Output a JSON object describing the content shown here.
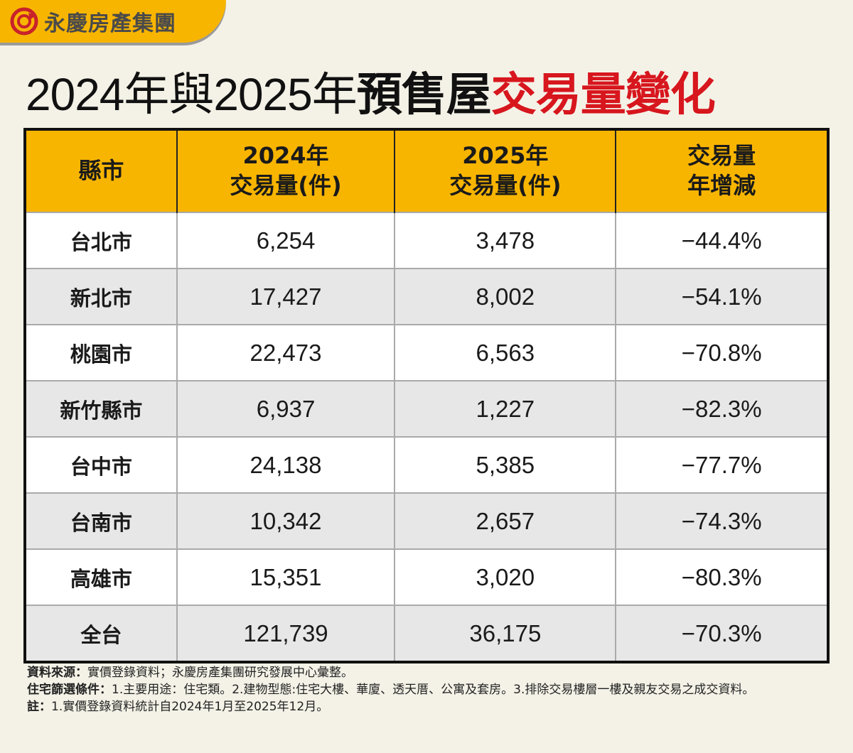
{
  "brand": {
    "name": "永慶房產集團",
    "accent": "#f8b500",
    "logo_color": "#c8222b"
  },
  "title": {
    "part1": "2024年與2025年",
    "part2": "預售屋",
    "part3": "交易量變化",
    "highlight_color": "#d7161e"
  },
  "chart_data": {
    "type": "table",
    "columns": [
      "縣市",
      "2024年 交易量(件)",
      "2025年 交易量(件)",
      "交易量 年增減"
    ],
    "header_lines": [
      [
        "縣市"
      ],
      [
        "2024年",
        "交易量(件)"
      ],
      [
        "2025年",
        "交易量(件)"
      ],
      [
        "交易量",
        "年增減"
      ]
    ],
    "rows": [
      [
        "台北市",
        "6,254",
        "3,478",
        "−44.4%"
      ],
      [
        "新北市",
        "17,427",
        "8,002",
        "−54.1%"
      ],
      [
        "桃園市",
        "22,473",
        "6,563",
        "−70.8%"
      ],
      [
        "新竹縣市",
        "6,937",
        "1,227",
        "−82.3%"
      ],
      [
        "台中市",
        "24,138",
        "5,385",
        "−77.7%"
      ],
      [
        "台南市",
        "10,342",
        "2,657",
        "−74.3%"
      ],
      [
        "高雄市",
        "15,351",
        "3,020",
        "−80.3%"
      ],
      [
        "全台",
        "121,739",
        "36,175",
        "−70.3%"
      ]
    ]
  },
  "notes": [
    {
      "label": "資料來源：",
      "text": "實價登錄資料；永慶房產集團研究發展中心彙整。"
    },
    {
      "label": "住宅篩選條件：",
      "text": "1.主要用途：住宅類。2.建物型態:住宅大樓、華廈、透天厝、公寓及套房。3.排除交易樓層一樓及親友交易之成交資料。"
    },
    {
      "label": "註：",
      "text": "1.實價登錄資料統計自2024年1月至2025年12月。"
    }
  ]
}
